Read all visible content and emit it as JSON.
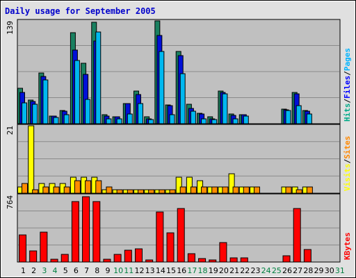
{
  "chart_data": {
    "type": "bar",
    "title": "Daily usage for September 2005",
    "days": [
      "1",
      "2",
      "3",
      "4",
      "5",
      "6",
      "7",
      "8",
      "9",
      "10",
      "11",
      "12",
      "13",
      "14",
      "15",
      "16",
      "17",
      "18",
      "19",
      "20",
      "21",
      "22",
      "23",
      "24",
      "25",
      "26",
      "27",
      "28",
      "29",
      "30",
      "31"
    ],
    "weekend_days": [
      "3",
      "4",
      "10",
      "11",
      "17",
      "18",
      "24",
      "25",
      "31"
    ],
    "panels": [
      {
        "id": "hits",
        "ymax_label": "139",
        "ymax": 139,
        "legend": [
          {
            "text": "Hits",
            "color": "#00aa88"
          },
          {
            "text": "/",
            "color": "#000000"
          },
          {
            "text": "Files",
            "color": "#0000ff"
          },
          {
            "text": "/",
            "color": "#000000"
          },
          {
            "text": "Pages",
            "color": "#00b4ff"
          }
        ],
        "series": [
          {
            "name": "Hits",
            "color": "#1a8060",
            "values": [
              48,
              32,
              69,
              10,
              18,
              123,
              82,
              137,
              12,
              9,
              27,
              44,
              9,
              139,
              25,
              98,
              26,
              14,
              9,
              44,
              13,
              12,
              null,
              null,
              null,
              20,
              42,
              18,
              null,
              null,
              null
            ]
          },
          {
            "name": "Files",
            "color": "#0010d8",
            "values": [
              42,
              30,
              64,
              10,
              17,
              100,
              67,
              112,
              10,
              9,
              27,
              39,
              7,
              119,
              24,
              92,
              21,
              13,
              7,
              42,
              11,
              12,
              null,
              null,
              null,
              19,
              40,
              17,
              null,
              null,
              null
            ]
          },
          {
            "name": "Pages",
            "color": "#00b8f0",
            "values": [
              28,
              26,
              59,
              8,
              12,
              85,
              33,
              124,
              7,
              7,
              13,
              27,
              6,
              98,
              12,
              68,
              17,
              7,
              6,
              40,
              7,
              10,
              null,
              null,
              null,
              18,
              24,
              13,
              null,
              null,
              null
            ]
          }
        ]
      },
      {
        "id": "visits",
        "ymax_label": "21",
        "ymax": 21,
        "legend": [
          {
            "text": "Visits",
            "color": "#ffff00"
          },
          {
            "text": "/",
            "color": "#000000"
          },
          {
            "text": "Sites",
            "color": "#ff8800"
          }
        ],
        "series": [
          {
            "name": "Visits",
            "color": "#ffff00",
            "values": [
              2,
              21,
              3,
              3,
              3,
              5,
              5,
              5,
              1,
              1,
              1,
              1,
              1,
              1,
              1,
              5,
              5,
              4,
              2,
              2,
              6,
              2,
              2,
              null,
              null,
              2,
              2,
              2,
              null,
              null,
              null
            ]
          },
          {
            "name": "Sites",
            "color": "#ff8c00",
            "values": [
              3,
              1,
              2,
              2,
              2,
              4,
              4,
              4,
              2,
              1,
              1,
              1,
              1,
              1,
              1,
              2,
              2,
              2,
              2,
              2,
              2,
              2,
              2,
              null,
              null,
              2,
              1,
              2,
              null,
              null,
              null
            ]
          }
        ]
      },
      {
        "id": "kbytes",
        "ymax_label": "764",
        "ymax": 764,
        "legend": [
          {
            "text": "KBytes",
            "color": "#ff0000"
          }
        ],
        "series": [
          {
            "name": "KBytes",
            "color": "#ff0000",
            "values": [
              310,
              125,
              345,
              30,
              85,
              690,
              750,
              690,
              30,
              85,
              135,
              150,
              0,
              570,
              335,
              615,
              95,
              40,
              20,
              220,
              45,
              45,
              null,
              null,
              null,
              75,
              615,
              140,
              null,
              null,
              null
            ]
          }
        ]
      }
    ],
    "colors": {
      "panel_bg": "#c0c0c0",
      "frame_bg": "#e0e0e0",
      "grid": "#8a8a8a",
      "title": "#0000cc",
      "weekday_label": "#000000",
      "weekend_label": "#008040"
    }
  }
}
